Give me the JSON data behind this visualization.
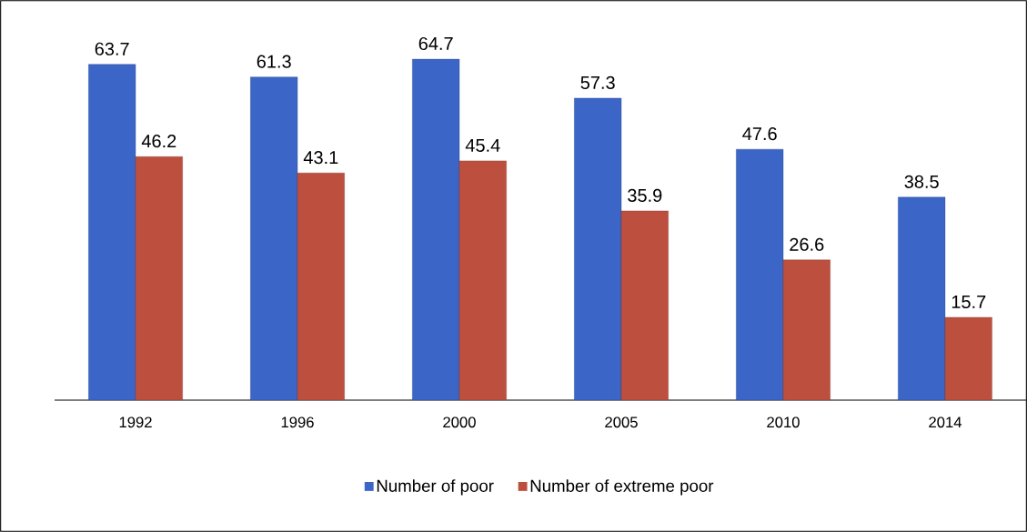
{
  "chart_data": {
    "type": "bar",
    "categories": [
      "1992",
      "1996",
      "2000",
      "2005",
      "2010",
      "2014"
    ],
    "series": [
      {
        "name": "Number of poor",
        "color": "#3b65c6",
        "values": [
          63.7,
          61.3,
          64.7,
          57.3,
          47.6,
          38.5
        ]
      },
      {
        "name": "Number of extreme poor",
        "color": "#bd4f3f",
        "values": [
          46.2,
          43.1,
          45.4,
          35.9,
          26.6,
          15.7
        ]
      }
    ],
    "data_labels": true,
    "legend": "bottom"
  }
}
